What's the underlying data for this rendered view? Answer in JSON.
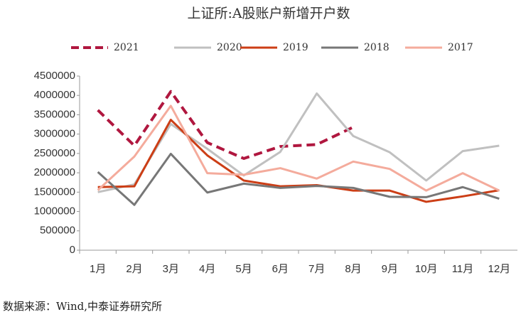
{
  "chart_data": {
    "type": "line",
    "title": "上证所:A股账户新增开户数",
    "categories": [
      "1月",
      "2月",
      "3月",
      "4月",
      "5月",
      "6月",
      "7月",
      "8月",
      "9月",
      "10月",
      "11月",
      "12月"
    ],
    "series": [
      {
        "name": "2021",
        "color": "#b0173f",
        "dashed": true,
        "values": [
          3620000,
          2700000,
          4100000,
          2780000,
          2370000,
          2680000,
          2730000,
          3180000,
          null,
          null,
          null,
          null
        ]
      },
      {
        "name": "2020",
        "color": "#c0c0c0",
        "values": [
          1500000,
          1700000,
          3260000,
          2620000,
          1930000,
          2540000,
          4050000,
          2950000,
          2530000,
          1800000,
          2560000,
          2700000
        ]
      },
      {
        "name": "2019",
        "color": "#cc3e16",
        "values": [
          1630000,
          1650000,
          3370000,
          2450000,
          1800000,
          1650000,
          1680000,
          1540000,
          1540000,
          1250000,
          1390000,
          1550000
        ]
      },
      {
        "name": "2018",
        "color": "#777777",
        "values": [
          2020000,
          1170000,
          2490000,
          1490000,
          1720000,
          1610000,
          1660000,
          1610000,
          1380000,
          1370000,
          1630000,
          1330000
        ]
      },
      {
        "name": "2017",
        "color": "#f4ab9c",
        "values": [
          1550000,
          2420000,
          3730000,
          1990000,
          1950000,
          2120000,
          1850000,
          2290000,
          2100000,
          1540000,
          1990000,
          1540000
        ]
      }
    ],
    "ylim": [
      0,
      4500000
    ],
    "yticks": [
      0,
      500000,
      1000000,
      1500000,
      2000000,
      2500000,
      3000000,
      3500000,
      4000000,
      4500000
    ],
    "legend": "top",
    "source": "数据来源：Wind,中泰证券研究所"
  }
}
